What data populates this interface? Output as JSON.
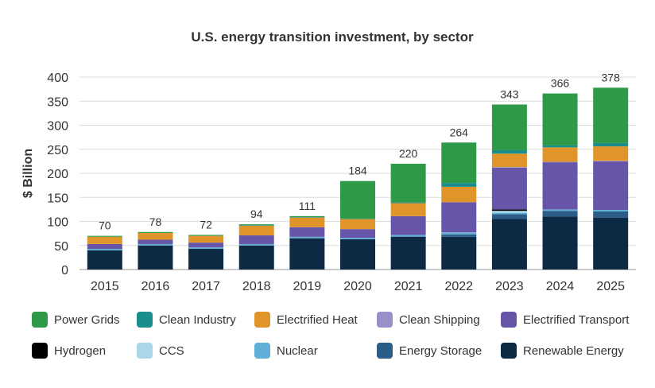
{
  "chart_data": {
    "type": "bar",
    "stacked": true,
    "title": "U.S. energy transition investment, by sector",
    "xlabel": "",
    "ylabel": "$ Billion",
    "ylim": [
      0,
      400
    ],
    "yticks": [
      0,
      50,
      100,
      150,
      200,
      250,
      300,
      350,
      400
    ],
    "grid": true,
    "legend_position": "bottom",
    "categories": [
      "2015",
      "2016",
      "2017",
      "2018",
      "2019",
      "2020",
      "2021",
      "2022",
      "2023",
      "2024",
      "2025"
    ],
    "totals": [
      70,
      78,
      72,
      94,
      111,
      184,
      220,
      264,
      343,
      366,
      378
    ],
    "series": [
      {
        "name": "Renewable Energy",
        "color": "#0d2a45",
        "values": [
          40,
          50,
          43,
          50,
          65,
          63,
          68,
          68,
          105,
          110,
          108
        ]
      },
      {
        "name": "Energy Storage",
        "color": "#2c5c88",
        "values": [
          0,
          0,
          0,
          0,
          0,
          0,
          1,
          5,
          10,
          12,
          13
        ]
      },
      {
        "name": "Nuclear",
        "color": "#60afd6",
        "values": [
          3,
          3,
          3,
          3,
          3,
          3,
          3,
          3,
          3,
          3,
          3
        ]
      },
      {
        "name": "CCS",
        "color": "#a9d6e8",
        "values": [
          0,
          0,
          0,
          0,
          0,
          0,
          0,
          1,
          4,
          0,
          0
        ]
      },
      {
        "name": "Hydrogen",
        "color": "#000000",
        "values": [
          0,
          0,
          0,
          0,
          0,
          0,
          0,
          0,
          3,
          0,
          0
        ]
      },
      {
        "name": "Electrified Transport",
        "color": "#6655a8",
        "values": [
          10,
          9,
          10,
          18,
          20,
          18,
          39,
          63,
          87,
          98,
          101
        ]
      },
      {
        "name": "Clean Shipping",
        "color": "#9a90c9",
        "values": [
          0,
          0,
          0,
          0,
          0,
          0,
          0,
          0,
          1,
          1,
          1
        ]
      },
      {
        "name": "Electrified Heat",
        "color": "#e0952b",
        "values": [
          15,
          14,
          14,
          20,
          20,
          21,
          27,
          32,
          28,
          30,
          30
        ]
      },
      {
        "name": "Clean Industry",
        "color": "#1a8d8d",
        "values": [
          0,
          0,
          0,
          1,
          1,
          1,
          2,
          8,
          7,
          4,
          7
        ]
      },
      {
        "name": "Power Grids",
        "color": "#2e9a48",
        "values": [
          2,
          2,
          2,
          2,
          2,
          78,
          80,
          84,
          95,
          108,
          115
        ]
      }
    ],
    "legend_order": [
      "Power Grids",
      "Clean Industry",
      "Electrified Heat",
      "Clean Shipping",
      "Electrified Transport",
      "Hydrogen",
      "CCS",
      "Nuclear",
      "Energy Storage",
      "Renewable Energy"
    ]
  }
}
